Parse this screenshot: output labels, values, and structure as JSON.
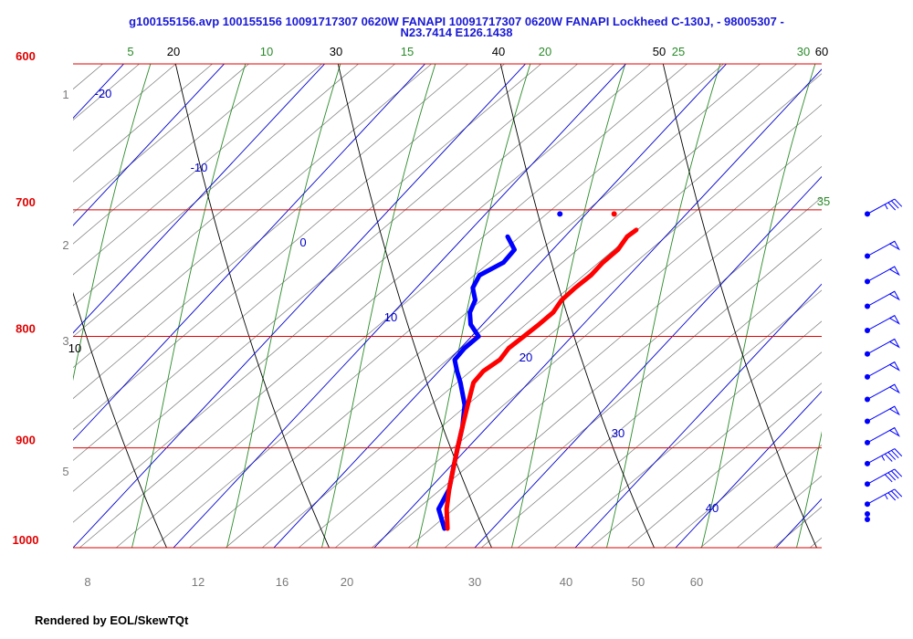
{
  "title": {
    "line1": "g100155156.avp 100155156 10091717307 0620W FANAPI 10091717307 0620W FANAPI Lockheed C-130J, - 98005307 -",
    "line2": "N23.7414 E126.1438"
  },
  "footer": "Rendered by EOL/SkewTQt",
  "colors": {
    "isobar": "#e00000",
    "isotherm": "#0000cc",
    "dry_adiabat": "#000000",
    "moist_adiabat": "#2a8a2a",
    "mixing_ratio": "#7a7a7a",
    "temperature": "#ff0000",
    "dewpoint": "#0000ff",
    "wind": "#0000ff"
  },
  "chart_data": {
    "type": "skew-t",
    "p_range": [
      1000,
      600
    ],
    "t_range_at_bottom": [
      -10,
      40
    ],
    "pressure_labels": [
      600,
      700,
      800,
      900,
      1000
    ],
    "isotherm_labels": [
      -20,
      -10,
      0,
      10,
      20,
      30,
      40
    ],
    "dry_adiabat_labels": [
      10,
      20,
      30,
      40,
      50,
      60
    ],
    "moist_adiabat_labels": [
      5,
      10,
      15,
      20,
      25,
      30,
      35
    ],
    "mixing_ratio_left_labels": [
      1,
      2,
      3,
      5
    ],
    "mixing_ratio_bottom_labels": [
      8,
      12,
      16,
      20,
      30,
      40,
      50,
      60
    ],
    "temperature_profile": {
      "p": [
        980,
        960,
        940,
        920,
        900,
        880,
        860,
        840,
        830,
        820,
        810,
        800,
        790,
        780,
        770,
        760,
        750,
        740,
        730,
        720,
        715
      ],
      "t": [
        25.5,
        23.6,
        22.0,
        20.5,
        19.0,
        17.5,
        16.0,
        14.5,
        14.4,
        15.0,
        14.8,
        15.2,
        15.6,
        15.9,
        15.6,
        15.8,
        16.2,
        16.2,
        16.5,
        16.2,
        16.5
      ]
    },
    "dewpoint_profile": {
      "p": [
        980,
        960,
        940,
        920,
        900,
        880,
        860,
        840,
        830,
        820,
        810,
        800,
        790,
        780,
        770,
        760,
        750,
        740,
        730,
        720
      ],
      "td": [
        25.2,
        22.8,
        22.0,
        20.5,
        19.0,
        17.5,
        15.7,
        13.2,
        11.8,
        10.5,
        10.4,
        10.7,
        8.8,
        7.6,
        7.0,
        5.6,
        5.1,
        6.3,
        6.2,
        4.3
      ]
    },
    "surface_markers": {
      "p": 703,
      "t": 12.8,
      "td": 7.4
    },
    "wind_barbs": [
      {
        "p": 703,
        "dir_deg": 100,
        "kt": 35
      },
      {
        "p": 735,
        "dir_deg": 110,
        "kt": 50
      },
      {
        "p": 755,
        "dir_deg": 110,
        "kt": 50
      },
      {
        "p": 775,
        "dir_deg": 110,
        "kt": 50
      },
      {
        "p": 795,
        "dir_deg": 110,
        "kt": 50
      },
      {
        "p": 815,
        "dir_deg": 110,
        "kt": 50
      },
      {
        "p": 835,
        "dir_deg": 110,
        "kt": 50
      },
      {
        "p": 855,
        "dir_deg": 110,
        "kt": 50
      },
      {
        "p": 875,
        "dir_deg": 110,
        "kt": 50
      },
      {
        "p": 895,
        "dir_deg": 110,
        "kt": 50
      },
      {
        "p": 915,
        "dir_deg": 110,
        "kt": 45
      },
      {
        "p": 935,
        "dir_deg": 120,
        "kt": 40
      },
      {
        "p": 955,
        "dir_deg": 140,
        "kt": 35
      }
    ]
  }
}
